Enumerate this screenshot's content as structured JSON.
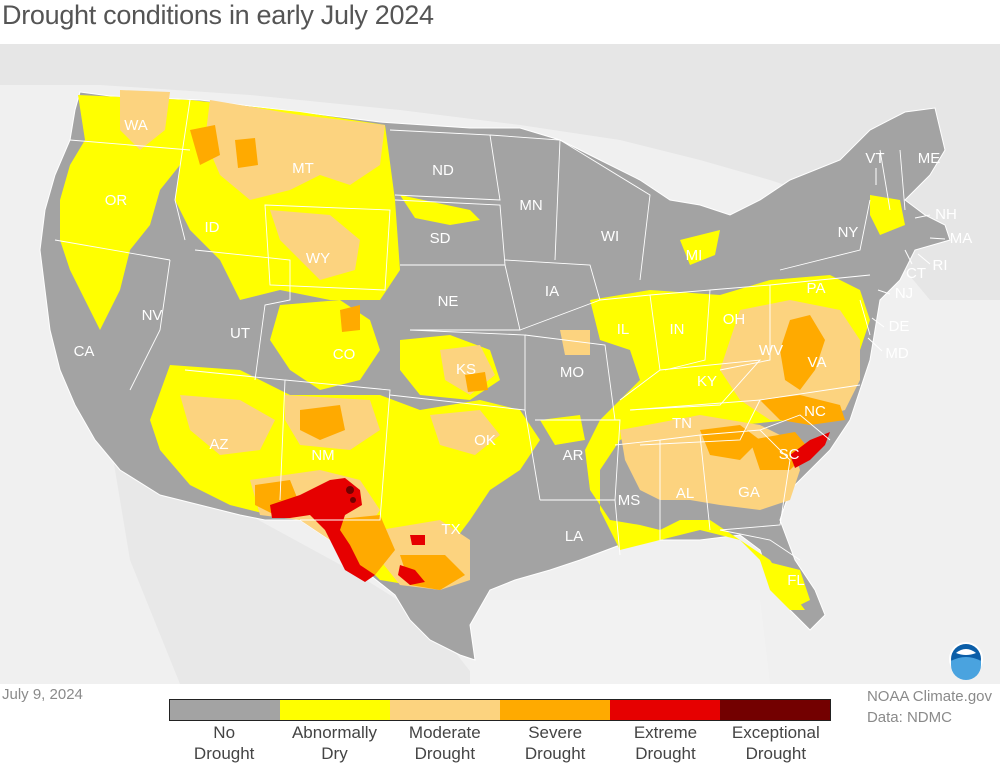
{
  "title": "Drought conditions in early July 2024",
  "date": "July 9, 2024",
  "credit": {
    "source": "NOAA Climate.gov",
    "data": "Data: NDMC"
  },
  "logo_icon": "noaa-logo-icon",
  "legend": [
    {
      "line1": "No",
      "line2": "Drought",
      "color": "#a3a3a3"
    },
    {
      "line1": "Abnormally",
      "line2": "Dry",
      "color": "#ffff00"
    },
    {
      "line1": "Moderate",
      "line2": "Drought",
      "color": "#fcd37f"
    },
    {
      "line1": "Severe",
      "line2": "Drought",
      "color": "#ffaa00"
    },
    {
      "line1": "Extreme",
      "line2": "Drought",
      "color": "#e60000"
    },
    {
      "line1": "Exceptional",
      "line2": "Drought",
      "color": "#730000"
    }
  ],
  "states": {
    "WA": "WA",
    "OR": "OR",
    "CA": "CA",
    "ID": "ID",
    "NV": "NV",
    "MT": "MT",
    "WY": "WY",
    "UT": "UT",
    "AZ": "AZ",
    "CO": "CO",
    "NM": "NM",
    "ND": "ND",
    "SD": "SD",
    "NE": "NE",
    "KS": "KS",
    "OK": "OK",
    "TX": "TX",
    "MN": "MN",
    "IA": "IA",
    "MO": "MO",
    "AR": "AR",
    "LA": "LA",
    "WI": "WI",
    "IL": "IL",
    "MI": "MI",
    "IN": "IN",
    "OH": "OH",
    "KY": "KY",
    "TN": "TN",
    "MS": "MS",
    "AL": "AL",
    "GA": "GA",
    "FL": "FL",
    "SC": "SC",
    "NC": "NC",
    "VA": "VA",
    "WV": "WV",
    "PA": "PA",
    "NY": "NY",
    "VT": "VT",
    "ME": "ME",
    "NH": "NH",
    "MA": "MA",
    "CT": "CT",
    "RI": "RI",
    "NJ": "NJ",
    "DE": "DE",
    "MD": "MD"
  }
}
